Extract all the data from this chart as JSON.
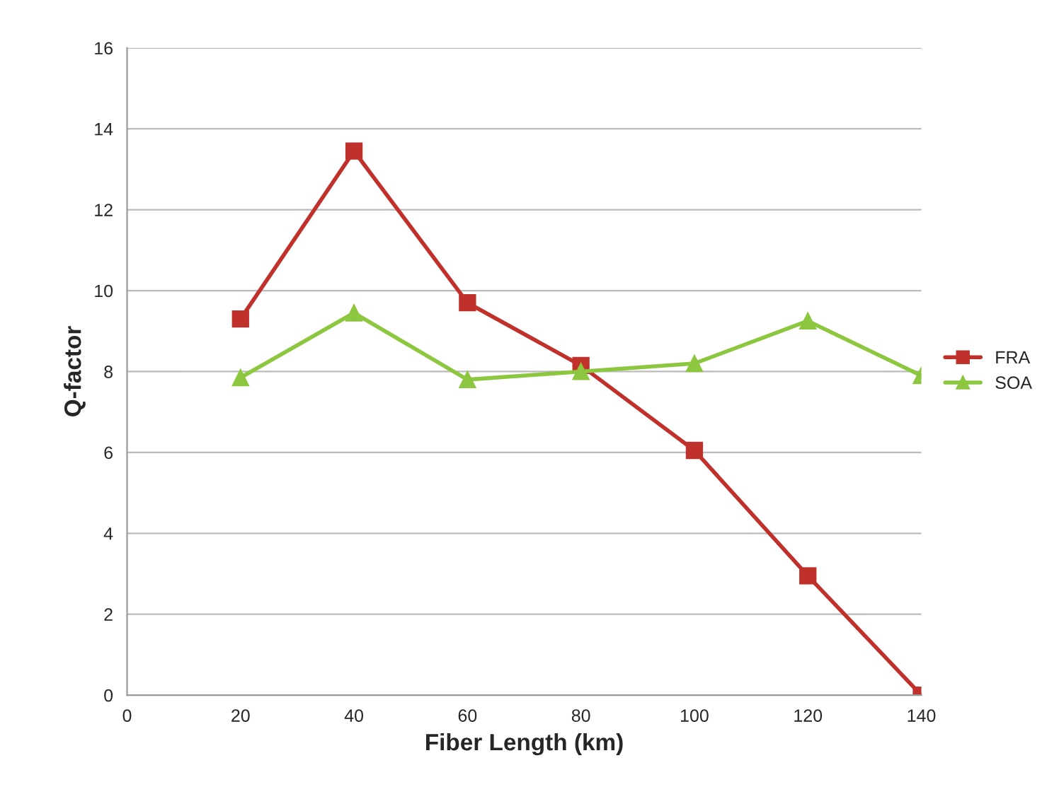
{
  "chart_data": {
    "type": "line",
    "xlabel": "Fiber Length (km)",
    "ylabel": "Q-factor",
    "x": [
      20,
      40,
      60,
      80,
      100,
      120,
      140
    ],
    "series": [
      {
        "name": "FRA",
        "color": "#c0312b",
        "marker": "square",
        "values": [
          9.3,
          13.45,
          9.7,
          8.15,
          6.05,
          2.95,
          0
        ]
      },
      {
        "name": "SOA",
        "color": "#8dc63f",
        "marker": "triangle",
        "values": [
          7.85,
          9.45,
          7.8,
          8.0,
          8.2,
          9.25,
          7.9
        ]
      }
    ],
    "xlim": [
      0,
      140
    ],
    "xticks": [
      0,
      20,
      40,
      60,
      80,
      100,
      120,
      140
    ],
    "ylim": [
      0,
      16
    ],
    "yticks": [
      0,
      2,
      4,
      6,
      8,
      10,
      12,
      14,
      16
    ],
    "grid": "y",
    "legend": "right",
    "line_style": "solid"
  }
}
